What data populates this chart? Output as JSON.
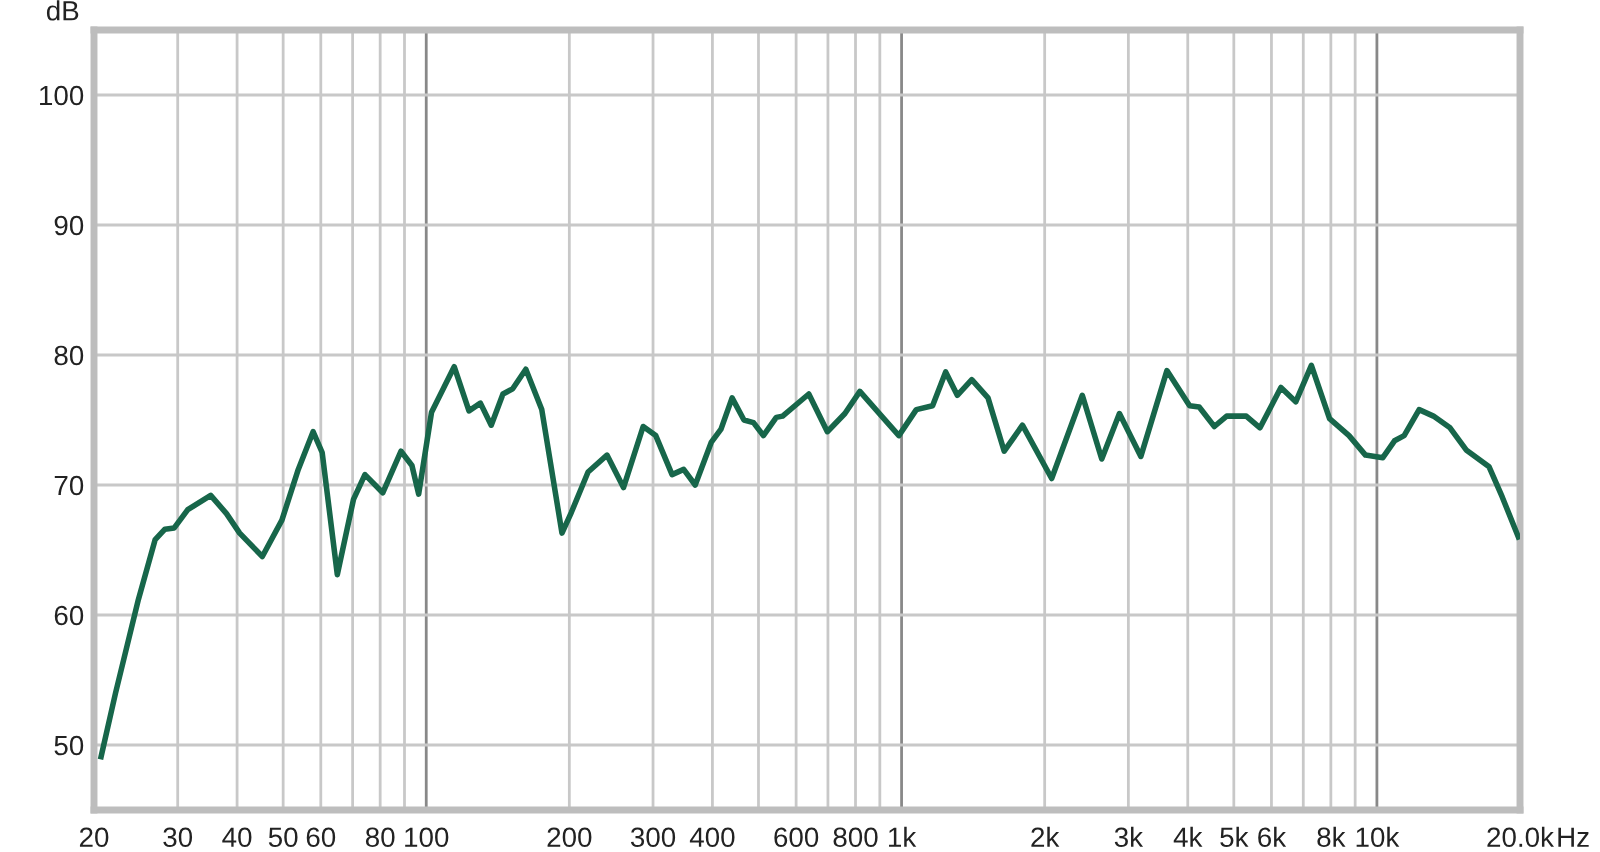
{
  "chart_data": {
    "type": "line",
    "ylabel": "dB",
    "log": "x",
    "grid": true,
    "legend": false,
    "marker": "none",
    "line_style": "solid",
    "xlim": [
      20,
      20000
    ],
    "ylim": [
      45,
      105
    ],
    "xticks": [
      20,
      30,
      40,
      50,
      60,
      {
        "value": 70,
        "label": null
      },
      80,
      {
        "value": 90,
        "label": null
      },
      100,
      200,
      300,
      400,
      {
        "value": 500,
        "label": null
      },
      600,
      {
        "value": 700,
        "label": null
      },
      800,
      {
        "value": 900,
        "label": null
      },
      {
        "value": 1000,
        "label": "1k"
      },
      {
        "value": 2000,
        "label": "2k"
      },
      {
        "value": 3000,
        "label": "3k"
      },
      {
        "value": 4000,
        "label": "4k"
      },
      {
        "value": 5000,
        "label": "5k"
      },
      {
        "value": 6000,
        "label": "6k"
      },
      {
        "value": 7000,
        "label": null
      },
      {
        "value": 8000,
        "label": "8k"
      },
      {
        "value": 9000,
        "label": null
      },
      {
        "value": 10000,
        "label": "10k"
      },
      {
        "value": 20000,
        "label": "20.0k"
      }
    ],
    "xlabel": "Hz",
    "yticks": [
      50,
      60,
      70,
      80,
      90,
      100
    ],
    "series": [
      {
        "color": "#17664a",
        "x": [
          20.7,
          22.2,
          24.8,
          26.9,
          28.2,
          29.5,
          31.5,
          35.2,
          38,
          40.5,
          45.2,
          49.7,
          53.8,
          57.8,
          60.4,
          65,
          70.3,
          74.3,
          81,
          88.5,
          93.3,
          96.4,
          102.6,
          114.5,
          123,
          130,
          137,
          145,
          152,
          162,
          175,
          193,
          202,
          219,
          240,
          260,
          286,
          304,
          329,
          348,
          368,
          398,
          417,
          440,
          466,
          488,
          512,
          545,
          562,
          638,
          698,
          760,
          817,
          903,
          987,
          1074,
          1162,
          1238,
          1310,
          1405,
          1520,
          1644,
          1796,
          2069,
          2400,
          2637,
          2873,
          3187,
          3616,
          4036,
          4228,
          4550,
          4830,
          5310,
          5676,
          6281,
          6749,
          7280,
          7950,
          8737,
          9462,
          10290,
          10890,
          11410,
          12270,
          13150,
          14250,
          15410,
          17220,
          18340,
          19840
        ],
        "values": [
          49.1,
          54.0,
          61.2,
          65.8,
          66.6,
          66.7,
          68.1,
          69.2,
          67.8,
          66.3,
          64.5,
          67.3,
          71.2,
          74.1,
          72.5,
          63.1,
          68.9,
          70.8,
          69.4,
          72.6,
          71.5,
          69.3,
          75.6,
          79.1,
          75.7,
          76.3,
          74.6,
          77.0,
          77.4,
          78.9,
          75.8,
          66.3,
          67.9,
          71.0,
          72.3,
          69.8,
          74.5,
          73.8,
          70.8,
          71.2,
          70.0,
          73.3,
          74.3,
          76.7,
          75.0,
          74.8,
          73.8,
          75.2,
          75.3,
          77.0,
          74.1,
          75.5,
          77.2,
          75.4,
          73.8,
          75.8,
          76.1,
          78.7,
          76.9,
          78.1,
          76.7,
          72.6,
          74.6,
          70.5,
          76.9,
          72.0,
          75.5,
          72.2,
          78.8,
          76.1,
          76.0,
          74.5,
          75.3,
          75.3,
          74.4,
          77.5,
          76.4,
          79.2,
          75.1,
          73.8,
          72.3,
          72.1,
          73.4,
          73.8,
          75.8,
          75.3,
          74.4,
          72.7,
          71.4,
          69.1,
          66.0
        ]
      }
    ]
  }
}
